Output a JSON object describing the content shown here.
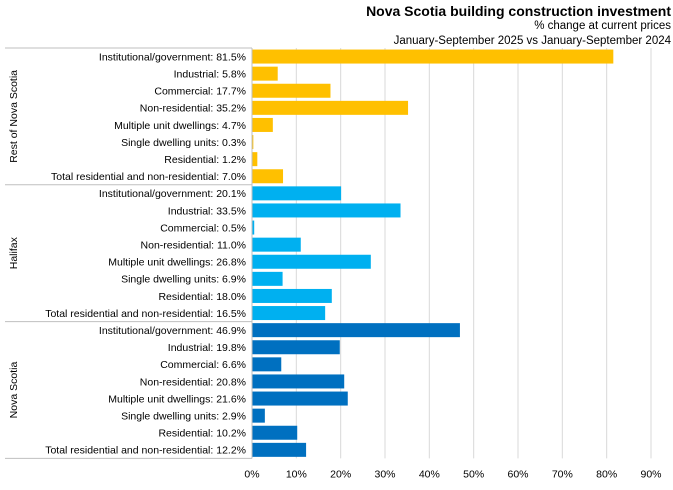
{
  "chart_data": {
    "type": "bar",
    "orientation": "horizontal",
    "title": "Nova Scotia building construction investment",
    "subtitle": "% change at current prices",
    "subtitle2": "January-September 2025 vs January-September 2024",
    "xlim": [
      0,
      90
    ],
    "x_ticks": [
      "0%",
      "10%",
      "20%",
      "30%",
      "40%",
      "50%",
      "60%",
      "70%",
      "80%",
      "90%"
    ],
    "grid": "vertical",
    "groups": [
      {
        "name": "Rest of Nova Scotia",
        "color": "#FFC000",
        "categories": [
          "Institutional/government: 81.5%",
          "Industrial: 5.8%",
          "Commercial: 17.7%",
          "Non-residential: 35.2%",
          "Multiple unit dwellings: 4.7%",
          "Single dwelling units: 0.3%",
          "Residential: 1.2%",
          "Total residential and non-residential: 7.0%"
        ],
        "values": [
          81.5,
          5.8,
          17.7,
          35.2,
          4.7,
          0.3,
          1.2,
          7.0
        ]
      },
      {
        "name": "Halifax",
        "color": "#00B0F0",
        "categories": [
          "Institutional/government: 20.1%",
          "Industrial: 33.5%",
          "Commercial: 0.5%",
          "Non-residential: 11.0%",
          "Multiple unit dwellings: 26.8%",
          "Single dwelling units: 6.9%",
          "Residential: 18.0%",
          "Total residential and non-residential: 16.5%"
        ],
        "values": [
          20.1,
          33.5,
          0.5,
          11.0,
          26.8,
          6.9,
          18.0,
          16.5
        ]
      },
      {
        "name": "Nova Scotia",
        "color": "#0070C0",
        "categories": [
          "Institutional/government: 46.9%",
          "Industrial: 19.8%",
          "Commercial: 6.6%",
          "Non-residential: 20.8%",
          "Multiple unit dwellings: 21.6%",
          "Single dwelling units: 2.9%",
          "Residential: 10.2%",
          "Total residential and non-residential: 12.2%"
        ],
        "values": [
          46.9,
          19.8,
          6.6,
          20.8,
          21.6,
          2.9,
          10.2,
          12.2
        ]
      }
    ]
  }
}
